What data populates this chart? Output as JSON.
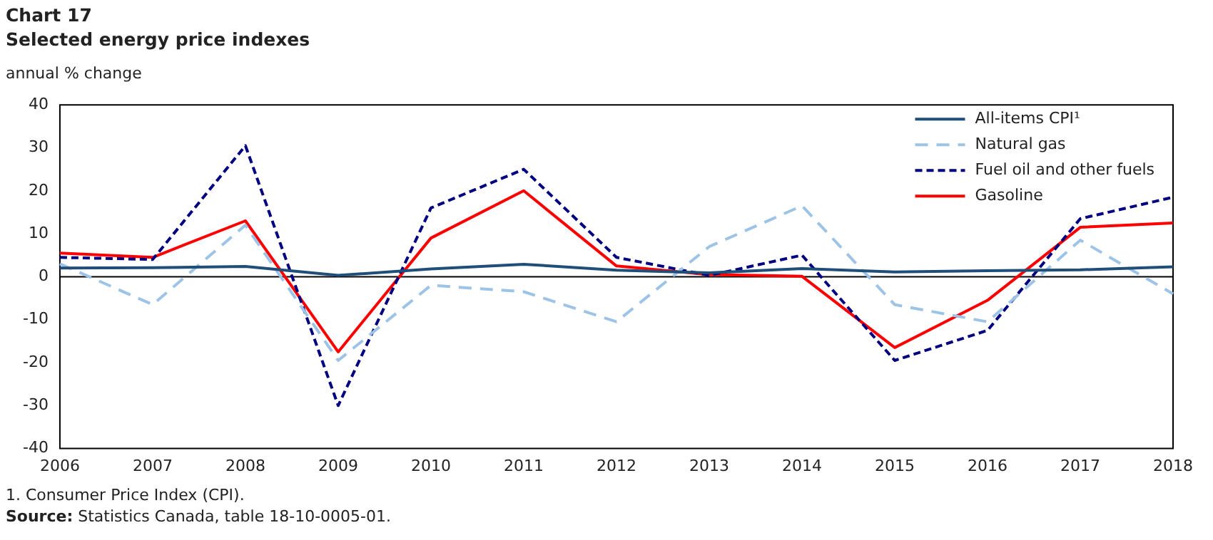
{
  "chart_data": {
    "type": "line",
    "title": "Chart 17",
    "subtitle": "Selected energy price indexes",
    "ylabel": "annual % change",
    "categories": [
      "2006",
      "2007",
      "2008",
      "2009",
      "2010",
      "2011",
      "2012",
      "2013",
      "2014",
      "2015",
      "2016",
      "2017",
      "2018"
    ],
    "series": [
      {
        "name": "All-items CPI¹",
        "color": "#1f4e79",
        "line_style": "solid",
        "values": [
          2.0,
          2.1,
          2.4,
          0.3,
          1.8,
          2.9,
          1.5,
          0.9,
          1.9,
          1.1,
          1.4,
          1.6,
          2.3
        ]
      },
      {
        "name": "Natural gas",
        "color": "#9dc3e6",
        "line_style": "dashed",
        "values": [
          3,
          -6.5,
          12,
          -19.5,
          -2,
          -3.5,
          -10.5,
          7,
          16.5,
          -6.5,
          -10.5,
          8.5,
          -4
        ]
      },
      {
        "name": "Fuel oil and other fuels",
        "color": "#000080",
        "line_style": "dashed",
        "values": [
          4.5,
          4,
          30.5,
          -30,
          16,
          25,
          4.5,
          0.3,
          5,
          -19.5,
          -12.5,
          13.5,
          18.5
        ]
      },
      {
        "name": "Gasoline",
        "color": "#ff0000",
        "line_style": "solid",
        "values": [
          5.5,
          4.5,
          13,
          -17.5,
          9,
          20,
          2.5,
          0.5,
          0.1,
          -16.5,
          -5.5,
          11.5,
          12.5
        ]
      }
    ],
    "ylim": [
      -40,
      40
    ],
    "yticks": [
      -40,
      -30,
      -20,
      -10,
      0,
      10,
      20,
      30,
      40
    ],
    "grid": false,
    "legend": "top right",
    "marker": "none",
    "ref_lines": [
      {
        "axis": "y",
        "value": 0,
        "color": "#000000"
      }
    ],
    "annotations": [
      "1. Consumer Price Index (CPI).",
      "Source: Statistics Canada, table 18-10-0005-01."
    ]
  }
}
